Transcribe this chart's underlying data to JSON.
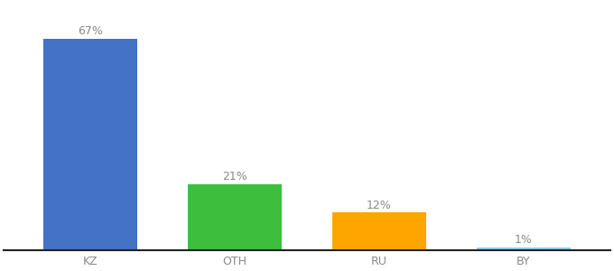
{
  "categories": [
    "KZ",
    "OTH",
    "RU",
    "BY"
  ],
  "values": [
    67,
    21,
    12,
    1
  ],
  "labels": [
    "67%",
    "21%",
    "12%",
    "1%"
  ],
  "bar_colors": [
    "#4472C4",
    "#3DBF3D",
    "#FFA500",
    "#87CEEB"
  ],
  "ylim": [
    0,
    78
  ],
  "background_color": "#ffffff",
  "label_fontsize": 9,
  "tick_fontsize": 9,
  "label_color": "#888888",
  "tick_color": "#888888",
  "bar_width": 0.65
}
